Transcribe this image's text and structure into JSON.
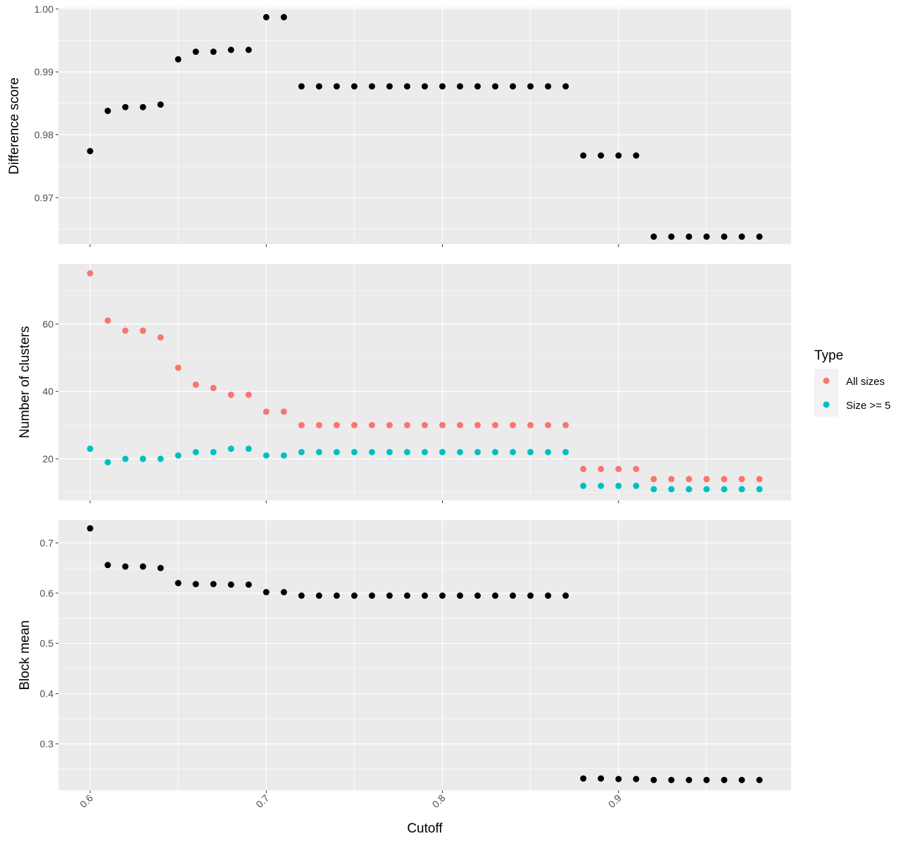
{
  "chart_data": {
    "type": "scatter",
    "xlabel": "Cutoff",
    "x": [
      0.6,
      0.61,
      0.62,
      0.63,
      0.64,
      0.65,
      0.66,
      0.67,
      0.68,
      0.69,
      0.7,
      0.71,
      0.72,
      0.73,
      0.74,
      0.75,
      0.76,
      0.77,
      0.78,
      0.79,
      0.8,
      0.81,
      0.82,
      0.83,
      0.84,
      0.85,
      0.86,
      0.87,
      0.88,
      0.89,
      0.9,
      0.91,
      0.92,
      0.93,
      0.94,
      0.95,
      0.96,
      0.97,
      0.98
    ],
    "x_ticks": [
      "0.6",
      "0.7",
      "0.8",
      "0.9"
    ],
    "xlim": [
      0.582,
      0.998
    ],
    "grid": true,
    "legend": {
      "title": "Type",
      "position": "right",
      "entries": [
        {
          "label": "All sizes",
          "color": "#F8766D"
        },
        {
          "label": "Size >= 5",
          "color": "#00BFC4"
        }
      ]
    },
    "panels": [
      {
        "ylabel": "Difference score",
        "ylim": [
          0.9626,
          1.0002
        ],
        "y_ticks": [
          "0.97",
          "0.98",
          "0.99",
          "1.00"
        ],
        "series": [
          {
            "color": "#000000",
            "values": [
              0.9774,
              0.9838,
              0.9844,
              0.9844,
              0.9848,
              0.992,
              0.9932,
              0.9932,
              0.9935,
              0.9935,
              0.9987,
              0.9987,
              0.9877,
              0.9877,
              0.9877,
              0.9877,
              0.9877,
              0.9877,
              0.9877,
              0.9877,
              0.9877,
              0.9877,
              0.9877,
              0.9877,
              0.9877,
              0.9877,
              0.9877,
              0.9877,
              0.9767,
              0.9767,
              0.9767,
              0.9767,
              0.9638,
              0.9638,
              0.9638,
              0.9638,
              0.9638,
              0.9638,
              0.9638
            ]
          }
        ]
      },
      {
        "ylabel": "Number of clusters",
        "ylim": [
          7.7,
          77.8
        ],
        "y_ticks": [
          "20",
          "40",
          "60"
        ],
        "series": [
          {
            "name": "All sizes",
            "color": "#F8766D",
            "values": [
              75,
              61,
              58,
              58,
              56,
              47,
              42,
              41,
              39,
              39,
              34,
              34,
              30,
              30,
              30,
              30,
              30,
              30,
              30,
              30,
              30,
              30,
              30,
              30,
              30,
              30,
              30,
              30,
              17,
              17,
              17,
              17,
              14,
              14,
              14,
              14,
              14,
              14,
              14
            ]
          },
          {
            "name": "Size >= 5",
            "color": "#00BFC4",
            "values": [
              23,
              19,
              20,
              20,
              20,
              21,
              22,
              22,
              23,
              23,
              21,
              21,
              22,
              22,
              22,
              22,
              22,
              22,
              22,
              22,
              22,
              22,
              22,
              22,
              22,
              22,
              22,
              22,
              12,
              12,
              12,
              12,
              11,
              11,
              11,
              11,
              11,
              11,
              11
            ]
          }
        ]
      },
      {
        "ylabel": "Block mean",
        "ylim": [
          0.2075,
          0.7455
        ],
        "y_ticks": [
          "0.3",
          "0.4",
          "0.5",
          "0.6",
          "0.7"
        ],
        "series": [
          {
            "color": "#000000",
            "values": [
              0.729,
              0.656,
              0.653,
              0.653,
              0.65,
              0.62,
              0.618,
              0.618,
              0.617,
              0.617,
              0.602,
              0.602,
              0.595,
              0.595,
              0.595,
              0.595,
              0.595,
              0.595,
              0.595,
              0.595,
              0.595,
              0.595,
              0.595,
              0.595,
              0.595,
              0.595,
              0.595,
              0.595,
              0.231,
              0.231,
              0.23,
              0.23,
              0.228,
              0.228,
              0.228,
              0.228,
              0.228,
              0.228,
              0.228
            ]
          }
        ]
      }
    ]
  }
}
